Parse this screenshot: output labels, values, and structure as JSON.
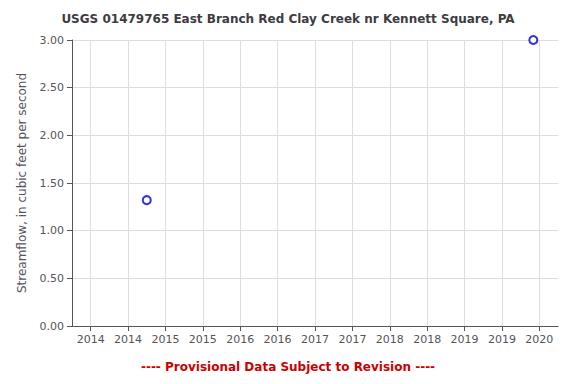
{
  "chart_data": {
    "type": "scatter",
    "title": "USGS 01479765 East Branch Red Clay Creek nr Kennett Square, PA",
    "ylabel": "Streamflow, in cubic feet per second",
    "annotations": [
      {
        "text": "---- Provisional Data Subject to Revision ----",
        "color": "#cc0000"
      }
    ],
    "x": [
      2014.75,
      2019.92
    ],
    "values": [
      1.32,
      3.0
    ],
    "color": "#0000cc",
    "marker": "open_circle",
    "xlim": [
      2013.75,
      2020.25
    ],
    "xticks": [
      2014,
      {
        "value": 2014.5,
        "label": "2014"
      },
      2015,
      {
        "value": 2015.5,
        "label": "2015"
      },
      2016,
      {
        "value": 2016.5,
        "label": "2016"
      },
      2017,
      {
        "value": 2017.5,
        "label": "2017"
      },
      2018,
      {
        "value": 2018.5,
        "label": "2018"
      },
      2019,
      {
        "value": 2019.5,
        "label": "2019"
      },
      2020
    ],
    "ylim": [
      0.0,
      3.0
    ],
    "yticks": [
      {
        "value": 0.0,
        "label": "0.00"
      },
      {
        "value": 0.5,
        "label": "0.50"
      },
      {
        "value": 1.0,
        "label": "1.00"
      },
      {
        "value": 1.5,
        "label": "1.50"
      },
      {
        "value": 2.0,
        "label": "2.00"
      },
      {
        "value": 2.5,
        "label": "2.50"
      },
      {
        "value": 3.0,
        "label": "3.00"
      }
    ],
    "grid": true
  }
}
